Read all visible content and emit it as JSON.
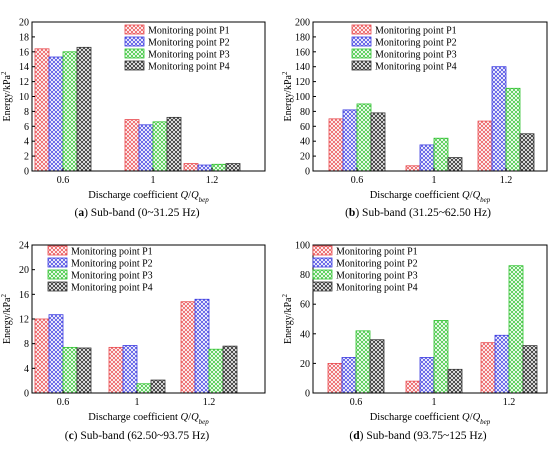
{
  "figure": {
    "legend_labels": [
      "Monitoring point P1",
      "Monitoring point P2",
      "Monitoring point P3",
      "Monitoring point P4"
    ],
    "series_colors": [
      "#e8474b",
      "#3a3ae0",
      "#2ec22e",
      "#333333"
    ],
    "ylabel_main": "Energy/kPa",
    "ylabel_sup": "2",
    "xlabel_main": "Discharge coefficient ",
    "xlabel_q": "Q",
    "xlabel_slash": "/",
    "xlabel_qsub": "Q",
    "xlabel_sub": "bep"
  },
  "chart_data": [
    {
      "type": "bar",
      "panel_letter": "a",
      "caption_rest": " Sub-band (0~31.25 Hz)",
      "categories": [
        "0.6",
        "1",
        "1.2"
      ],
      "ylim": [
        0,
        20
      ],
      "yticks": [
        "0",
        "2",
        "4",
        "6",
        "8",
        "10",
        "12",
        "14",
        "16",
        "18",
        "20"
      ],
      "xlabel": "Discharge coefficient Q/Qbep",
      "ylabel": "Energy/kPa2",
      "legend_position": "top-right",
      "series": [
        {
          "name": "Monitoring point P1",
          "values": [
            16.4,
            6.9,
            1.0
          ]
        },
        {
          "name": "Monitoring point P2",
          "values": [
            15.3,
            6.2,
            0.8
          ]
        },
        {
          "name": "Monitoring point P3",
          "values": [
            16.0,
            6.6,
            0.9
          ]
        },
        {
          "name": "Monitoring point P4",
          "values": [
            16.6,
            7.2,
            1.0
          ]
        }
      ]
    },
    {
      "type": "bar",
      "panel_letter": "b",
      "caption_rest": " Sub-band (31.25~62.50 Hz)",
      "categories": [
        "0.6",
        "1",
        "1.2"
      ],
      "ylim": [
        0,
        200
      ],
      "yticks": [
        "0",
        "20",
        "40",
        "60",
        "80",
        "100",
        "120",
        "140",
        "160",
        "180",
        "200"
      ],
      "xlabel": "Discharge coefficient Q/Qbep",
      "ylabel": "Energy/kPa2",
      "legend_position": "top-right",
      "series": [
        {
          "name": "Monitoring point P1",
          "values": [
            70,
            7,
            67
          ]
        },
        {
          "name": "Monitoring point P2",
          "values": [
            82,
            35,
            140
          ]
        },
        {
          "name": "Monitoring point P3",
          "values": [
            90,
            44,
            111
          ]
        },
        {
          "name": "Monitoring point P4",
          "values": [
            78,
            18,
            50
          ]
        }
      ]
    },
    {
      "type": "bar",
      "panel_letter": "c",
      "caption_rest": " Sub-band (62.50~93.75 Hz)",
      "categories": [
        "0.6",
        "1",
        "1.2"
      ],
      "ylim": [
        0,
        24
      ],
      "yticks": [
        "0",
        "4",
        "8",
        "12",
        "16",
        "20",
        "24"
      ],
      "xlabel": "Discharge coefficient Q/Qbep",
      "ylabel": "Energy/kPa2",
      "legend_position": "top-right",
      "series": [
        {
          "name": "Monitoring point P1",
          "values": [
            12.0,
            7.4,
            14.8
          ]
        },
        {
          "name": "Monitoring point P2",
          "values": [
            12.7,
            7.7,
            15.2
          ]
        },
        {
          "name": "Monitoring point P3",
          "values": [
            7.4,
            1.5,
            7.1
          ]
        },
        {
          "name": "Monitoring point P4",
          "values": [
            7.3,
            2.1,
            7.6
          ]
        }
      ]
    },
    {
      "type": "bar",
      "panel_letter": "d",
      "caption_rest": " Sub-band (93.75~125 Hz)",
      "categories": [
        "0.6",
        "1",
        "1.2"
      ],
      "ylim": [
        0,
        100
      ],
      "yticks": [
        "0",
        "20",
        "40",
        "60",
        "80",
        "100"
      ],
      "xlabel": "Discharge coefficient Q/Qbep",
      "ylabel": "Energy/kPa2",
      "legend_position": "top-left",
      "series": [
        {
          "name": "Monitoring point P1",
          "values": [
            20,
            8,
            34
          ]
        },
        {
          "name": "Monitoring point P2",
          "values": [
            24,
            24,
            39
          ]
        },
        {
          "name": "Monitoring point P3",
          "values": [
            42,
            49,
            86
          ]
        },
        {
          "name": "Monitoring point P4",
          "values": [
            36,
            16,
            32
          ]
        }
      ]
    }
  ]
}
